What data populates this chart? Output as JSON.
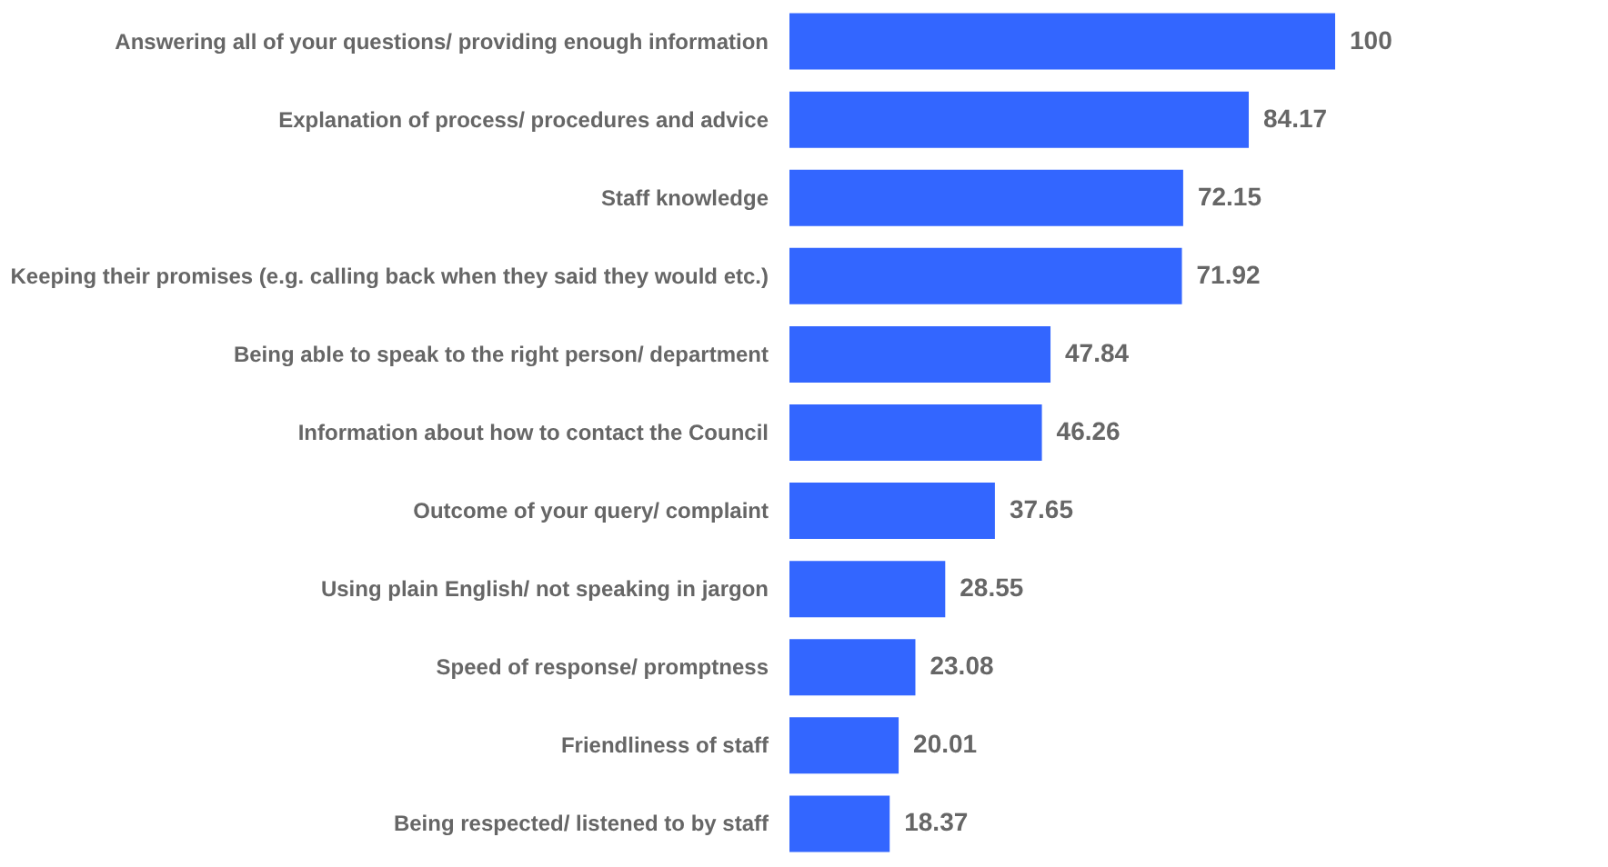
{
  "chart_data": {
    "type": "bar",
    "orientation": "horizontal",
    "data_labels": true,
    "color": "#3366ff",
    "categories": [
      "Answering all of your questions/ providing enough information",
      "Explanation of process/ procedures and advice",
      "Staff knowledge",
      "Keeping their promises (e.g. calling back when they said they would etc.)",
      "Being able to speak to the right person/ department",
      "Information about how to contact the Council",
      "Outcome of your query/ complaint",
      "Using plain English/ not speaking in jargon",
      "Speed of response/ promptness",
      "Friendliness of staff",
      "Being respected/ listened to by staff"
    ],
    "values": [
      100,
      84.17,
      72.15,
      71.92,
      47.84,
      46.26,
      37.65,
      28.55,
      23.08,
      20.01,
      18.37
    ]
  }
}
